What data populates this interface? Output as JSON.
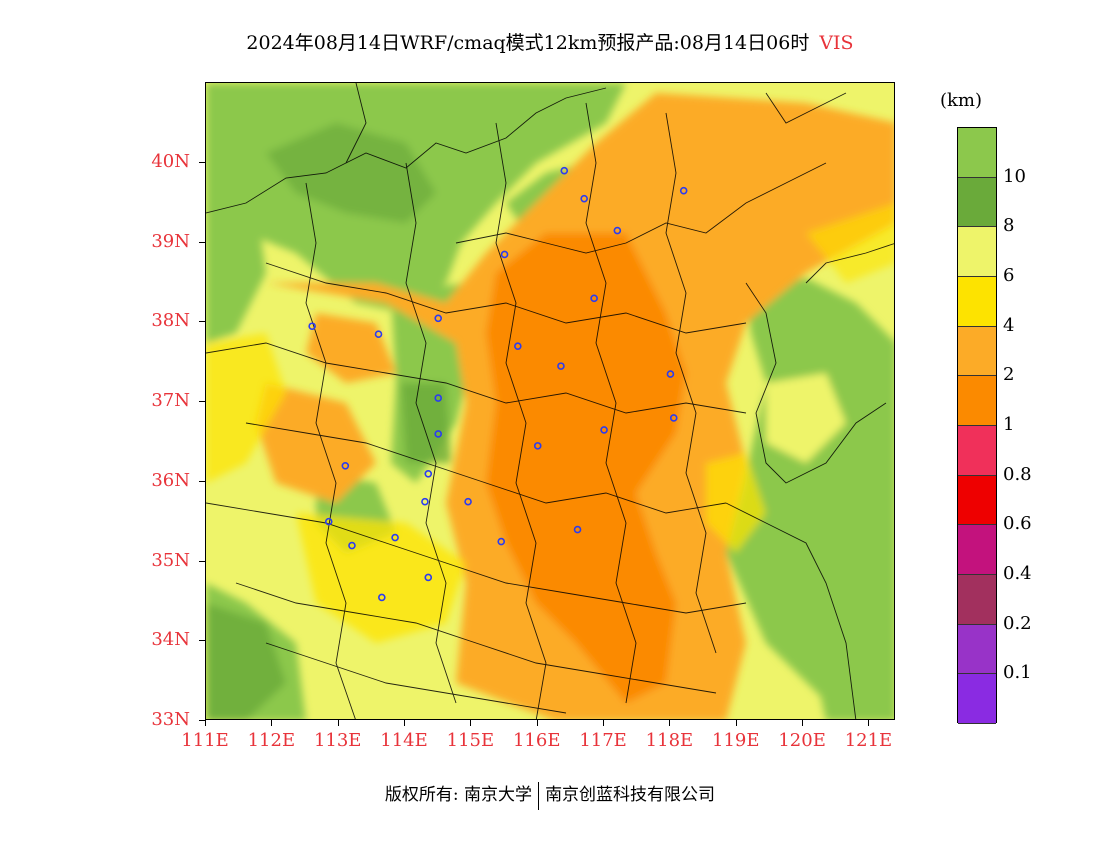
{
  "title": {
    "main": "2024年08月14日WRF/cmaq模式12km预报产品:08月14日06时",
    "variable": "VIS"
  },
  "legend": {
    "unit": "(km)",
    "bins": [
      {
        "label": "10",
        "color": "#8cc84c"
      },
      {
        "label": "8",
        "color": "#6aaa3a"
      },
      {
        "label": "6",
        "color": "#eef46a"
      },
      {
        "label": "4",
        "color": "#fde300"
      },
      {
        "label": "2",
        "color": "#fcab27"
      },
      {
        "label": "1",
        "color": "#fb8a00"
      },
      {
        "label": "0.8",
        "color": "#f0305a"
      },
      {
        "label": "0.6",
        "color": "#ee0000"
      },
      {
        "label": "0.4",
        "color": "#c3127d"
      },
      {
        "label": "0.2",
        "color": "#a2305e"
      },
      {
        "label": "0.1",
        "color": "#9833c8"
      },
      {
        "label": "",
        "color": "#8a2be2"
      }
    ]
  },
  "axes": {
    "y_labels": [
      "40N",
      "39N",
      "38N",
      "37N",
      "36N",
      "35N",
      "34N",
      "33N"
    ],
    "x_labels": [
      "111E",
      "112E",
      "113E",
      "114E",
      "115E",
      "116E",
      "117E",
      "118E",
      "119E",
      "120E",
      "121E"
    ],
    "label_color": "#e8333a"
  },
  "map": {
    "lon_range": [
      111,
      121.4
    ],
    "lat_range": [
      33,
      41
    ],
    "stations": [
      {
        "lon": 116.4,
        "lat": 39.9
      },
      {
        "lon": 116.7,
        "lat": 39.55
      },
      {
        "lon": 118.2,
        "lat": 39.65
      },
      {
        "lon": 117.2,
        "lat": 39.15
      },
      {
        "lon": 115.5,
        "lat": 38.85
      },
      {
        "lon": 116.85,
        "lat": 38.3
      },
      {
        "lon": 112.6,
        "lat": 37.95
      },
      {
        "lon": 113.6,
        "lat": 37.85
      },
      {
        "lon": 114.5,
        "lat": 38.05
      },
      {
        "lon": 115.7,
        "lat": 37.7
      },
      {
        "lon": 116.35,
        "lat": 37.45
      },
      {
        "lon": 118.0,
        "lat": 37.35
      },
      {
        "lon": 114.5,
        "lat": 37.05
      },
      {
        "lon": 118.05,
        "lat": 36.8
      },
      {
        "lon": 114.5,
        "lat": 36.6
      },
      {
        "lon": 117.0,
        "lat": 36.65
      },
      {
        "lon": 116.0,
        "lat": 36.45
      },
      {
        "lon": 113.1,
        "lat": 36.2
      },
      {
        "lon": 114.35,
        "lat": 36.1
      },
      {
        "lon": 114.3,
        "lat": 35.75
      },
      {
        "lon": 114.95,
        "lat": 35.75
      },
      {
        "lon": 112.85,
        "lat": 35.5
      },
      {
        "lon": 113.85,
        "lat": 35.3
      },
      {
        "lon": 116.6,
        "lat": 35.4
      },
      {
        "lon": 113.2,
        "lat": 35.2
      },
      {
        "lon": 115.45,
        "lat": 35.25
      },
      {
        "lon": 114.35,
        "lat": 34.8
      },
      {
        "lon": 113.65,
        "lat": 34.55
      }
    ]
  },
  "copyright": {
    "left": "版权所有: 南京大学",
    "right": "南京创蓝科技有限公司"
  }
}
